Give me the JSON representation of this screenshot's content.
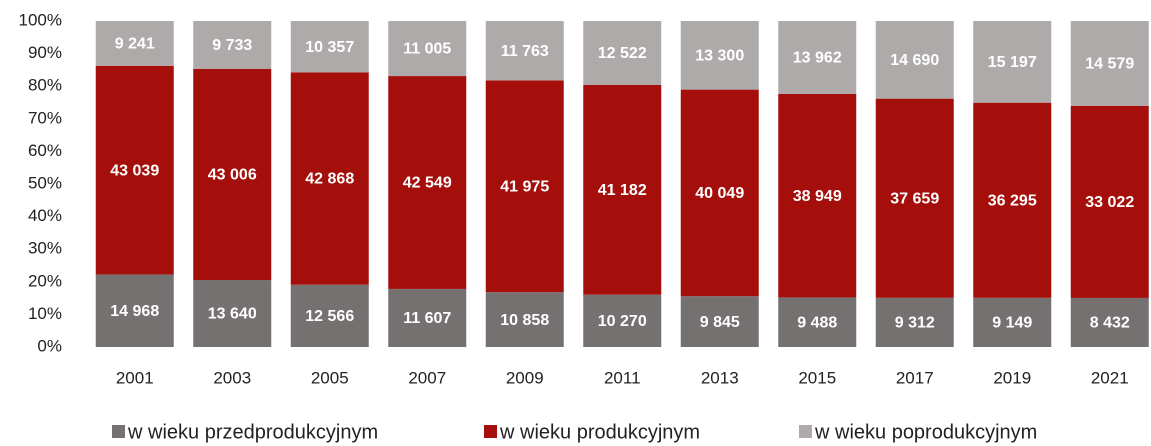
{
  "chart_data": {
    "type": "bar",
    "stacked": "percent",
    "categories": [
      "2001",
      "2003",
      "2005",
      "2007",
      "2009",
      "2011",
      "2013",
      "2015",
      "2017",
      "2019",
      "2021"
    ],
    "series": [
      {
        "name": "w wieku przedprodukcyjnym",
        "color": "#767171",
        "values": [
          14968,
          13640,
          12566,
          11607,
          10858,
          10270,
          9845,
          9488,
          9312,
          9149,
          8432
        ],
        "value_labels": [
          "14 968",
          "13 640",
          "12 566",
          "11 607",
          "10 858",
          "10 270",
          "9 845",
          "9 488",
          "9 312",
          "9 149",
          "8 432"
        ]
      },
      {
        "name": "w wieku produkcyjnym",
        "color": "#a50f0b",
        "values": [
          43039,
          43006,
          42868,
          42549,
          41975,
          41182,
          40049,
          38949,
          37659,
          36295,
          33022
        ],
        "value_labels": [
          "43 039",
          "43 006",
          "42 868",
          "42 549",
          "41 975",
          "41 182",
          "40 049",
          "38 949",
          "37 659",
          "36 295",
          "33 022"
        ]
      },
      {
        "name": "w wieku poprodukcyjnym",
        "color": "#aeaaaa",
        "values": [
          9241,
          9733,
          10357,
          11005,
          11763,
          12522,
          13300,
          13962,
          14690,
          15197,
          14579
        ],
        "value_labels": [
          "9 241",
          "9 733",
          "10 357",
          "11 005",
          "11 763",
          "12 522",
          "13 300",
          "13 962",
          "14 690",
          "15 197",
          "14 579"
        ]
      }
    ],
    "ylim": [
      0,
      100
    ],
    "yticks": [
      {
        "value": 0,
        "label": "0%"
      },
      {
        "value": 10,
        "label": "10%"
      },
      {
        "value": 20,
        "label": "20%"
      },
      {
        "value": 30,
        "label": "30%"
      },
      {
        "value": 40,
        "label": "40%"
      },
      {
        "value": 50,
        "label": "50%"
      },
      {
        "value": 60,
        "label": "60%"
      },
      {
        "value": 70,
        "label": "70%"
      },
      {
        "value": 80,
        "label": "80%"
      },
      {
        "value": 90,
        "label": "90%"
      },
      {
        "value": 100,
        "label": "100%"
      }
    ],
    "legend": "bottom"
  }
}
